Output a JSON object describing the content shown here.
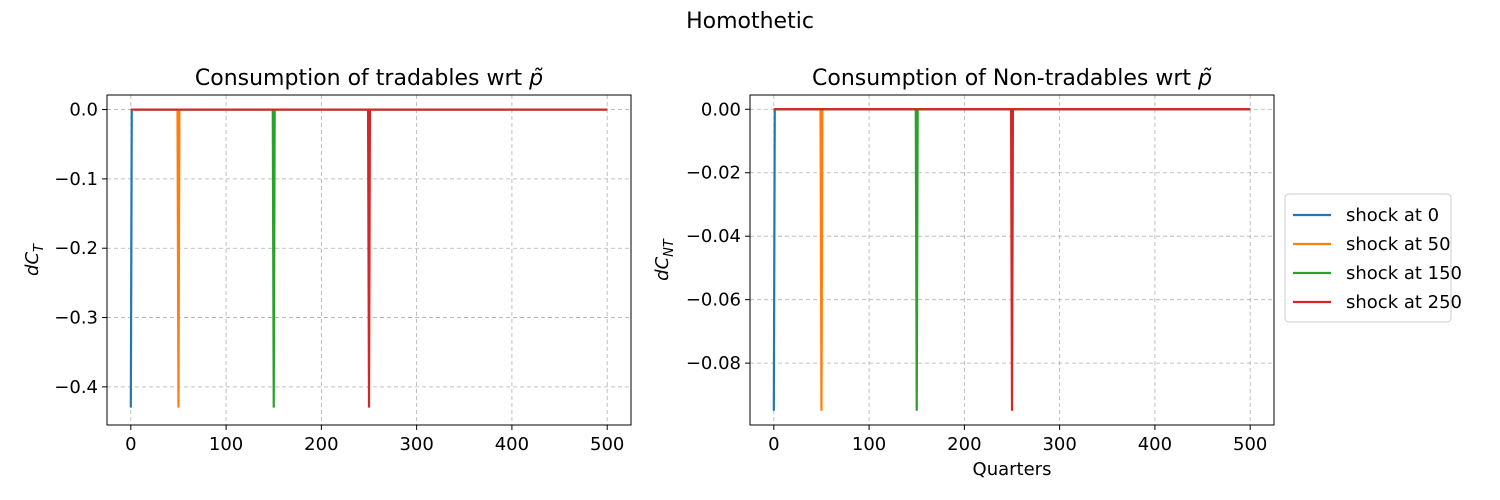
{
  "figure": {
    "title": "Homothetic"
  },
  "chart_data": [
    {
      "type": "line",
      "title": "Consumption of tradables wrt p̃",
      "title_text": "Consumption of tradables wrt ",
      "title_symbol": "p̃",
      "xlabel": "",
      "ylabel": "dC",
      "ylabel_sub": "T",
      "xlim": [
        -25,
        525
      ],
      "ylim": [
        -0.455,
        0.021
      ],
      "xticks": [
        0,
        100,
        200,
        300,
        400,
        500
      ],
      "xtick_labels": [
        "0",
        "100",
        "200",
        "300",
        "400",
        "500"
      ],
      "yticks": [
        0.0,
        -0.1,
        -0.2,
        -0.3,
        -0.4
      ],
      "ytick_labels": [
        "0.0",
        "−0.1",
        "−0.2",
        "−0.3",
        "−0.4"
      ],
      "grid": true,
      "series": [
        {
          "name": "shock at 0",
          "color": "#1f77b4",
          "x": [
            0,
            1,
            500
          ],
          "y": [
            -0.43,
            0.0,
            0.0
          ]
        },
        {
          "name": "shock at 50",
          "color": "#ff7f0e",
          "x": [
            0,
            49,
            50,
            51,
            500
          ],
          "y": [
            0.0,
            0.0,
            -0.43,
            0.0,
            0.0
          ]
        },
        {
          "name": "shock at 150",
          "color": "#2ca02c",
          "x": [
            0,
            149,
            150,
            151,
            500
          ],
          "y": [
            0.0,
            0.0,
            -0.43,
            0.0,
            0.0
          ]
        },
        {
          "name": "shock at 250",
          "color": "#d62728",
          "x": [
            0,
            249,
            250,
            251,
            500
          ],
          "y": [
            0.0,
            0.0,
            -0.43,
            0.0,
            0.0
          ]
        }
      ]
    },
    {
      "type": "line",
      "title": "Consumption of Non-tradables wrt p̃",
      "title_text": "Consumption of Non-tradables wrt ",
      "title_symbol": "p̃",
      "xlabel": "Quarters",
      "ylabel": "dC",
      "ylabel_sub": "NT",
      "xlim": [
        -25,
        525
      ],
      "ylim": [
        -0.0995,
        0.0045
      ],
      "xticks": [
        0,
        100,
        200,
        300,
        400,
        500
      ],
      "xtick_labels": [
        "0",
        "100",
        "200",
        "300",
        "400",
        "500"
      ],
      "yticks": [
        0.0,
        -0.02,
        -0.04,
        -0.06,
        -0.08
      ],
      "ytick_labels": [
        "0.00",
        "−0.02",
        "−0.04",
        "−0.06",
        "−0.08"
      ],
      "grid": true,
      "legend": "right",
      "series": [
        {
          "name": "shock at 0",
          "color": "#1f77b4",
          "x": [
            0,
            1,
            500
          ],
          "y": [
            -0.095,
            0.0,
            0.0
          ]
        },
        {
          "name": "shock at 50",
          "color": "#ff7f0e",
          "x": [
            0,
            49,
            50,
            51,
            500
          ],
          "y": [
            0.0,
            0.0,
            -0.095,
            0.0,
            0.0
          ]
        },
        {
          "name": "shock at 150",
          "color": "#2ca02c",
          "x": [
            0,
            149,
            150,
            151,
            500
          ],
          "y": [
            0.0,
            0.0,
            -0.095,
            0.0,
            0.0
          ]
        },
        {
          "name": "shock at 250",
          "color": "#d62728",
          "x": [
            0,
            249,
            250,
            251,
            500
          ],
          "y": [
            0.0,
            0.0,
            -0.095,
            0.0,
            0.0
          ]
        }
      ]
    }
  ]
}
